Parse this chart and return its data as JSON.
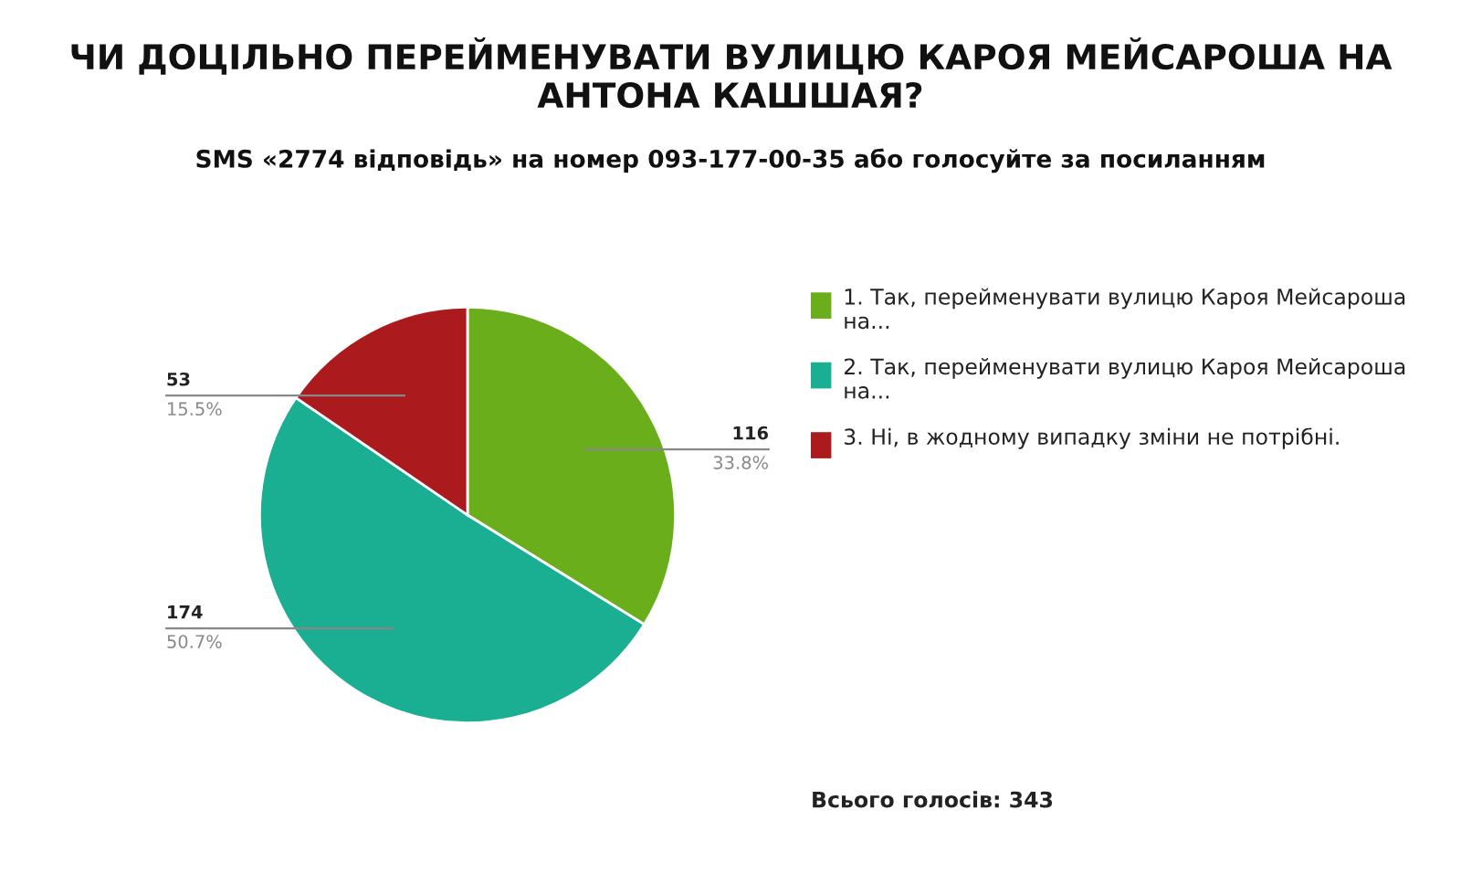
{
  "chart_data": {
    "type": "pie",
    "title": "ЧИ ДОЦІЛЬНО ПЕРЕЙМЕНУВАТИ ВУЛИЦЮ КАРОЯ МЕЙСАРОША НА АНТОНА КАШШАЯ?",
    "subtitle": "SMS «2774 відповідь» на номер 093-177-00-35 або голосуйте за посиланням",
    "categories": [
      "1. Так, перейменувати вулицю Кароя Мейсароша на...",
      "2. Так, перейменувати вулицю Кароя Мейсароша на...",
      "3. Ні, в жодному випадку зміни не потрібні."
    ],
    "values": [
      116,
      174,
      53
    ],
    "colors": [
      "#6aae1c",
      "#1aae93",
      "#ab1a1d"
    ],
    "value_labels": [
      "116\n33.8%",
      "174\n50.7%",
      "53\n15.5%"
    ],
    "legend": "right",
    "annotations": [
      "Всього голосів: 343"
    ]
  }
}
